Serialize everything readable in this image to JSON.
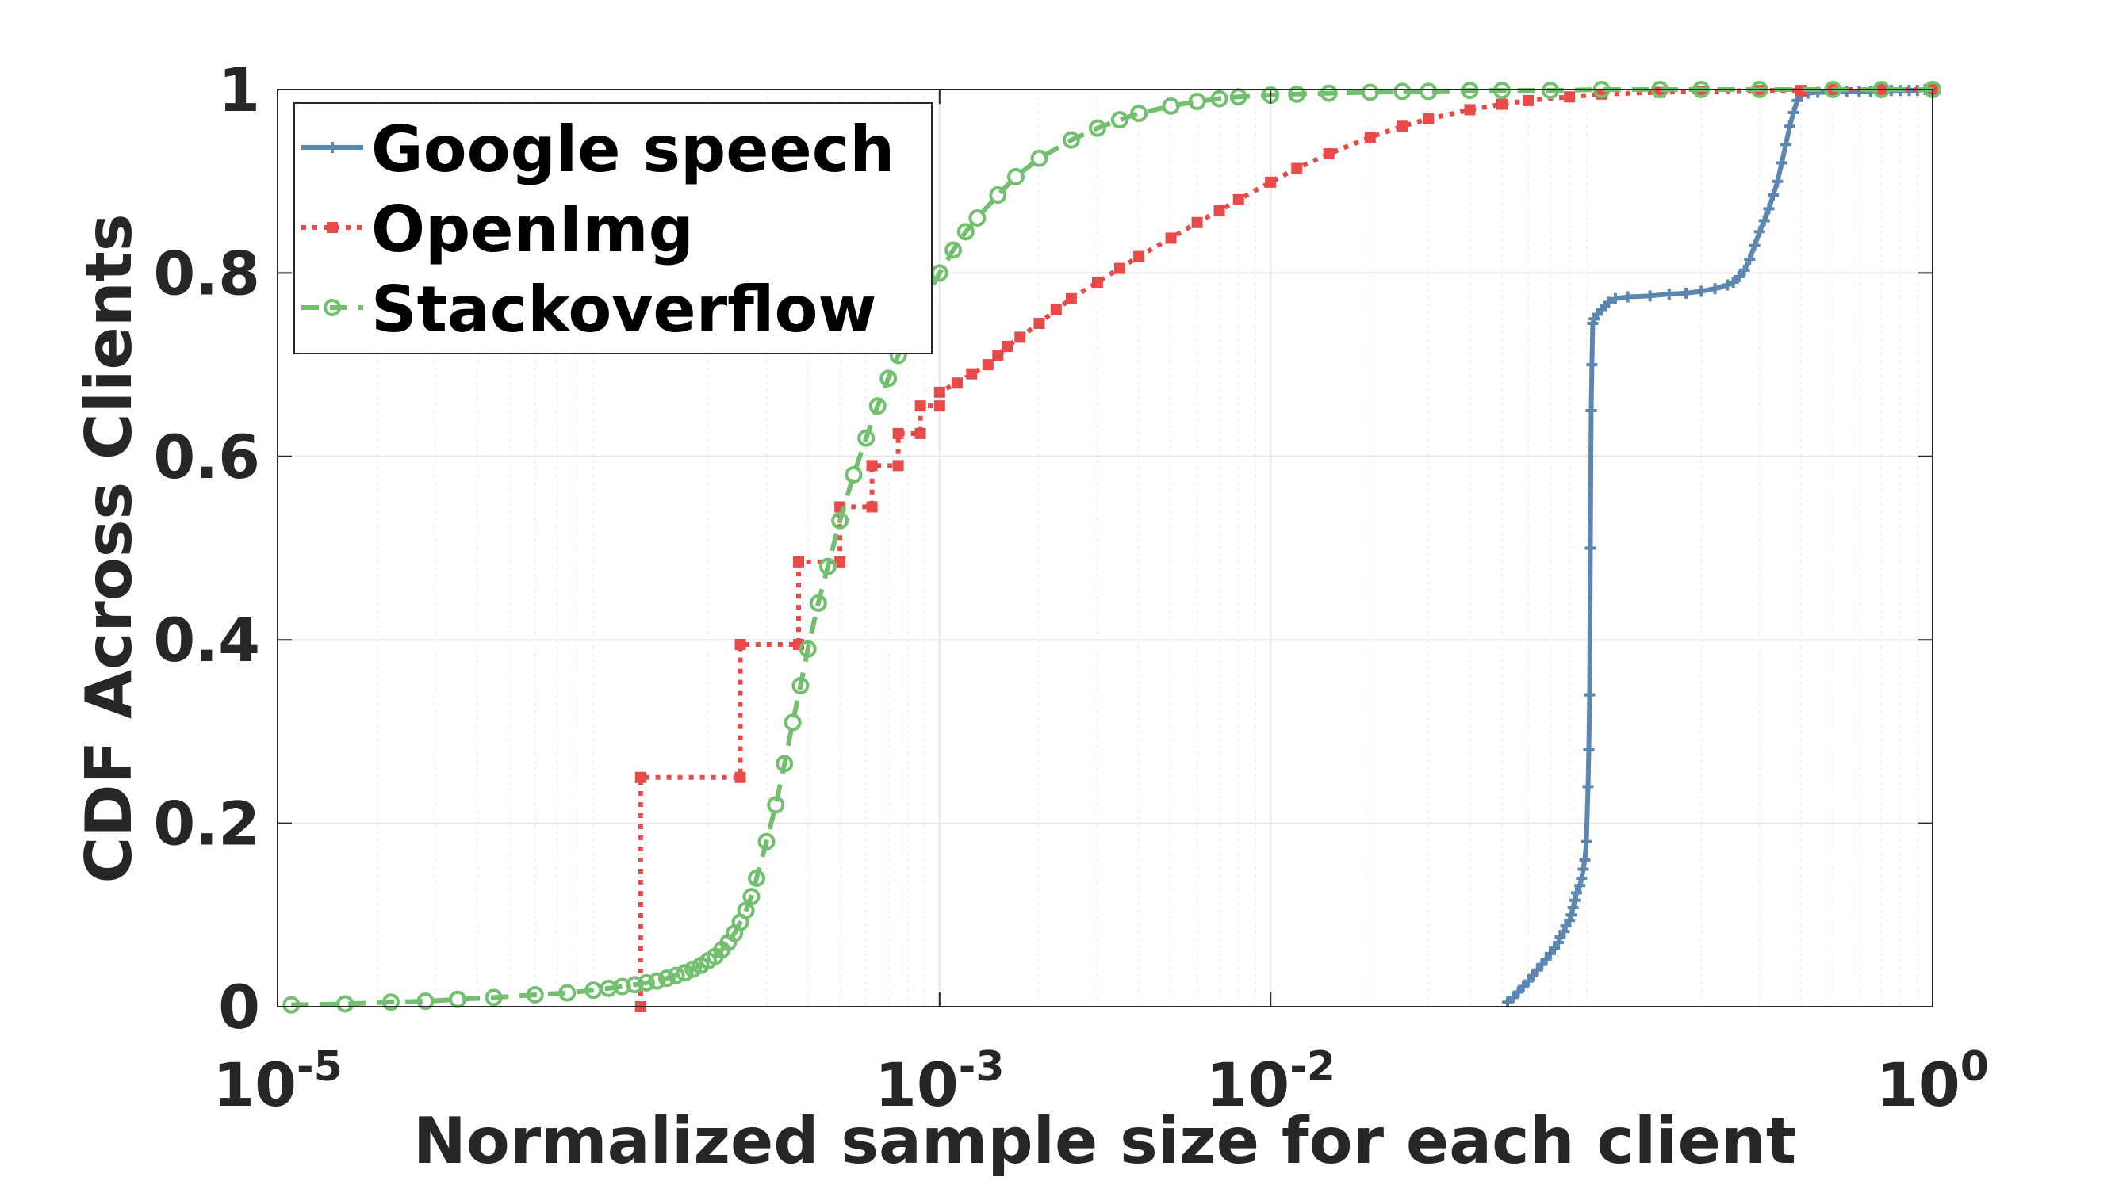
{
  "chart_data": {
    "type": "line",
    "xscale": "log",
    "xlabel": "Normalized sample size for each client",
    "ylabel": "CDF Across Clients",
    "xlim": [
      1e-05,
      1
    ],
    "ylim": [
      0,
      1
    ],
    "grid": true,
    "legend_position": "top-left",
    "x_ticks": [
      {
        "value": 1e-05,
        "base": "10",
        "exp": "-5"
      },
      {
        "value": 0.001,
        "base": "10",
        "exp": "-3"
      },
      {
        "value": 0.01,
        "base": "10",
        "exp": "-2"
      },
      {
        "value": 1,
        "base": "10",
        "exp": "0"
      }
    ],
    "y_ticks": [
      {
        "value": 0,
        "label": "0"
      },
      {
        "value": 0.2,
        "label": "0.2"
      },
      {
        "value": 0.4,
        "label": "0.4"
      },
      {
        "value": 0.6,
        "label": "0.6"
      },
      {
        "value": 0.8,
        "label": "0.8"
      },
      {
        "value": 1,
        "label": "1"
      }
    ],
    "series": [
      {
        "name": "Google speech",
        "color": "#5b86b0",
        "line_style": "solid",
        "marker": "plus",
        "x": [
          0.052,
          0.054,
          0.056,
          0.058,
          0.06,
          0.062,
          0.064,
          0.066,
          0.068,
          0.07,
          0.072,
          0.074,
          0.075,
          0.077,
          0.078,
          0.08,
          0.081,
          0.082,
          0.083,
          0.084,
          0.086,
          0.087,
          0.088,
          0.089,
          0.09,
          0.091,
          0.0915,
          0.092,
          0.0925,
          0.093,
          0.0935,
          0.094,
          0.095,
          0.097,
          0.1,
          0.105,
          0.11,
          0.12,
          0.14,
          0.16,
          0.18,
          0.2,
          0.22,
          0.24,
          0.25,
          0.26,
          0.27,
          0.28,
          0.29,
          0.3,
          0.31,
          0.32,
          0.33,
          0.34,
          0.35,
          0.36,
          0.37,
          0.38,
          0.39,
          0.4,
          0.42,
          0.45,
          0.5,
          0.55,
          0.6,
          0.65,
          0.7,
          0.75,
          0.8,
          0.85,
          0.9,
          0.95,
          1.0
        ],
        "y": [
          0.005,
          0.01,
          0.016,
          0.022,
          0.028,
          0.034,
          0.04,
          0.046,
          0.052,
          0.058,
          0.064,
          0.07,
          0.076,
          0.082,
          0.088,
          0.094,
          0.1,
          0.108,
          0.116,
          0.124,
          0.132,
          0.14,
          0.15,
          0.16,
          0.18,
          0.24,
          0.28,
          0.34,
          0.5,
          0.65,
          0.7,
          0.745,
          0.75,
          0.755,
          0.76,
          0.768,
          0.772,
          0.774,
          0.775,
          0.777,
          0.778,
          0.78,
          0.783,
          0.787,
          0.79,
          0.796,
          0.803,
          0.815,
          0.83,
          0.845,
          0.857,
          0.87,
          0.885,
          0.9,
          0.92,
          0.94,
          0.96,
          0.975,
          0.988,
          0.994,
          0.996,
          0.997,
          0.997,
          0.998,
          0.998,
          0.998,
          0.998,
          0.999,
          0.999,
          0.999,
          0.999,
          1.0,
          1.0
        ]
      },
      {
        "name": "OpenImg",
        "color": "#e84a4a",
        "line_style": "dotted",
        "marker": "square",
        "x": [
          0.000125,
          0.000125,
          0.00025,
          0.00025,
          0.000375,
          0.000375,
          0.0005,
          0.0005,
          0.000625,
          0.000625,
          0.00075,
          0.00075,
          0.000875,
          0.000875,
          0.001,
          0.001,
          0.00113,
          0.00125,
          0.0014,
          0.0015,
          0.0016,
          0.00175,
          0.002,
          0.00225,
          0.0025,
          0.003,
          0.0035,
          0.004,
          0.005,
          0.006,
          0.007,
          0.008,
          0.01,
          0.012,
          0.015,
          0.02,
          0.025,
          0.03,
          0.04,
          0.05,
          0.06,
          0.08,
          0.1,
          0.15,
          0.2,
          0.3,
          0.4,
          0.5,
          0.7,
          1.0
        ],
        "y": [
          0.0,
          0.25,
          0.25,
          0.395,
          0.395,
          0.485,
          0.485,
          0.545,
          0.545,
          0.59,
          0.59,
          0.625,
          0.625,
          0.655,
          0.655,
          0.67,
          0.68,
          0.69,
          0.7,
          0.71,
          0.72,
          0.73,
          0.745,
          0.76,
          0.772,
          0.79,
          0.805,
          0.818,
          0.838,
          0.855,
          0.868,
          0.88,
          0.899,
          0.914,
          0.93,
          0.948,
          0.96,
          0.968,
          0.978,
          0.984,
          0.988,
          0.992,
          0.995,
          0.997,
          0.998,
          0.999,
          0.999,
          1.0,
          1.0,
          1.0
        ]
      },
      {
        "name": "Stackoverflow",
        "color": "#72c06f",
        "line_style": "dashed",
        "marker": "circle",
        "x": [
          1.1e-05,
          1.6e-05,
          2.2e-05,
          2.8e-05,
          3.5e-05,
          4.5e-05,
          6e-05,
          7.5e-05,
          9e-05,
          0.0001,
          0.00011,
          0.00012,
          0.00013,
          0.00014,
          0.00015,
          0.00016,
          0.00017,
          0.00018,
          0.00019,
          0.0002,
          0.00021,
          0.00022,
          0.00023,
          0.00024,
          0.00025,
          0.00026,
          0.00027,
          0.00028,
          0.0003,
          0.00032,
          0.00034,
          0.00036,
          0.00038,
          0.0004,
          0.00043,
          0.00046,
          0.0005,
          0.00055,
          0.0006,
          0.00065,
          0.0007,
          0.00075,
          0.0008,
          0.0009,
          0.001,
          0.0011,
          0.0012,
          0.0013,
          0.0015,
          0.0017,
          0.002,
          0.0025,
          0.003,
          0.0035,
          0.004,
          0.005,
          0.006,
          0.007,
          0.008,
          0.01,
          0.012,
          0.015,
          0.02,
          0.025,
          0.03,
          0.04,
          0.05,
          0.07,
          0.1,
          0.15,
          0.2,
          0.3,
          0.5,
          0.7,
          1.0
        ],
        "y": [
          0.002,
          0.003,
          0.005,
          0.006,
          0.008,
          0.01,
          0.013,
          0.015,
          0.018,
          0.02,
          0.022,
          0.024,
          0.026,
          0.028,
          0.031,
          0.034,
          0.037,
          0.041,
          0.045,
          0.05,
          0.055,
          0.062,
          0.07,
          0.08,
          0.092,
          0.105,
          0.12,
          0.14,
          0.18,
          0.22,
          0.265,
          0.31,
          0.35,
          0.39,
          0.44,
          0.48,
          0.53,
          0.58,
          0.62,
          0.655,
          0.685,
          0.71,
          0.735,
          0.77,
          0.8,
          0.825,
          0.845,
          0.86,
          0.885,
          0.905,
          0.925,
          0.945,
          0.958,
          0.967,
          0.974,
          0.982,
          0.987,
          0.99,
          0.992,
          0.994,
          0.995,
          0.996,
          0.997,
          0.998,
          0.998,
          0.999,
          0.999,
          0.999,
          1.0,
          1.0,
          1.0,
          1.0,
          1.0,
          1.0,
          1.0
        ]
      }
    ]
  }
}
